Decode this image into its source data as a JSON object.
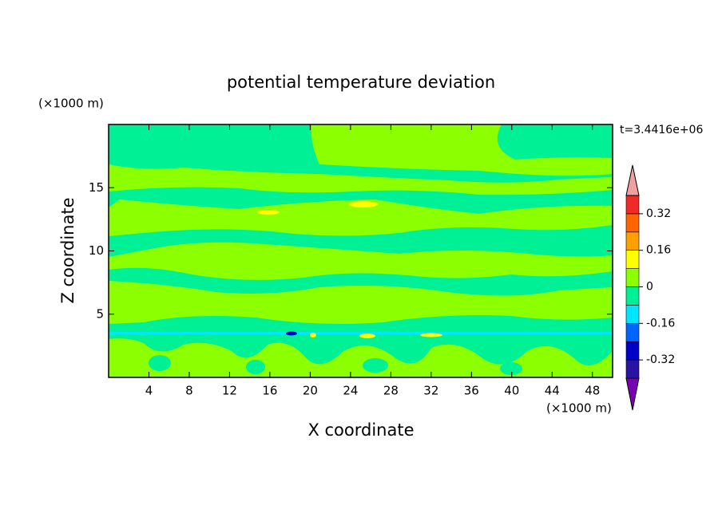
{
  "chart_data": {
    "type": "contour",
    "title": "potential temperature deviation",
    "x_label": "X coordinate",
    "y_label": "Z coordinate",
    "x_unit": "(×1000 m)",
    "y_unit": "(×1000 m)",
    "time_label": "t=3.4416e+06",
    "xlim": [
      0,
      50
    ],
    "xticks": [
      4,
      8,
      12,
      16,
      20,
      24,
      28,
      32,
      36,
      40,
      44,
      48
    ],
    "ylim": [
      0,
      20
    ],
    "yticks": [
      5,
      10,
      15
    ],
    "levels": [
      -0.4,
      -0.32,
      -0.24,
      -0.16,
      -0.08,
      0,
      0.08,
      0.16,
      0.24,
      0.32,
      0.4
    ],
    "colors": [
      "#7a00b4",
      "#2814a0",
      "#0000c8",
      "#0064ff",
      "#00e6ff",
      "#00f096",
      "#8cff00",
      "#ffff00",
      "#ffa000",
      "#ff6400",
      "#f02828",
      "#f0a0a0"
    ],
    "colorbar_ticks": [
      -0.32,
      -0.16,
      0,
      0.16,
      0.32
    ]
  }
}
